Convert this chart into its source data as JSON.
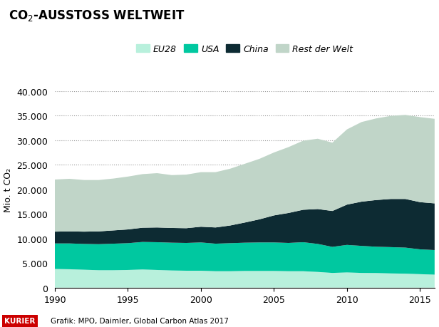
{
  "title": "CO$_2$-AUSSTOSS WELTWEIT",
  "ylabel": "Mio. t CO₂",
  "footer_brand": "KURIER",
  "footer_text": "Grafik: MPO, Daimler, Global Carbon Atlas 2017",
  "years": [
    1990,
    1991,
    1992,
    1993,
    1994,
    1995,
    1996,
    1997,
    1998,
    1999,
    2000,
    2001,
    2002,
    2003,
    2004,
    2005,
    2006,
    2007,
    2008,
    2009,
    2010,
    2011,
    2012,
    2013,
    2014,
    2015,
    2016
  ],
  "EU28": [
    3800,
    3750,
    3650,
    3550,
    3550,
    3600,
    3700,
    3600,
    3500,
    3450,
    3450,
    3350,
    3350,
    3400,
    3400,
    3400,
    3350,
    3350,
    3200,
    3000,
    3100,
    3000,
    2980,
    2900,
    2850,
    2750,
    2650
  ],
  "USA": [
    5200,
    5250,
    5250,
    5300,
    5400,
    5450,
    5600,
    5650,
    5650,
    5650,
    5750,
    5600,
    5700,
    5750,
    5800,
    5800,
    5750,
    5900,
    5700,
    5300,
    5600,
    5500,
    5350,
    5350,
    5300,
    5050,
    5000
  ],
  "China": [
    2400,
    2450,
    2500,
    2600,
    2700,
    2800,
    2900,
    3000,
    3000,
    3000,
    3200,
    3300,
    3600,
    4100,
    4700,
    5500,
    6100,
    6600,
    7100,
    7300,
    8200,
    9000,
    9500,
    9800,
    9900,
    9600,
    9500
  ],
  "Rest": [
    10600,
    10700,
    10500,
    10450,
    10550,
    10750,
    10900,
    11050,
    10750,
    10900,
    11100,
    11250,
    11550,
    11950,
    12300,
    12800,
    13400,
    14050,
    14300,
    13900,
    15300,
    16200,
    16600,
    16900,
    17100,
    17300,
    17200
  ],
  "colors": {
    "EU28": "#b8f0dc",
    "USA": "#00c8a0",
    "China": "#0d2b33",
    "Rest": "#c0d5c8"
  },
  "legend_labels": [
    "EU28",
    "USA",
    "China",
    "Rest der Welt"
  ],
  "ylim": [
    0,
    40000
  ],
  "yticks": [
    0,
    5000,
    10000,
    15000,
    20000,
    25000,
    30000,
    35000,
    40000
  ],
  "xticks": [
    1990,
    1995,
    2000,
    2005,
    2010,
    2015
  ],
  "bg_color": "#ffffff",
  "grid_color": "#999999",
  "title_fontsize": 12,
  "label_fontsize": 9,
  "tick_fontsize": 9,
  "legend_fontsize": 9
}
